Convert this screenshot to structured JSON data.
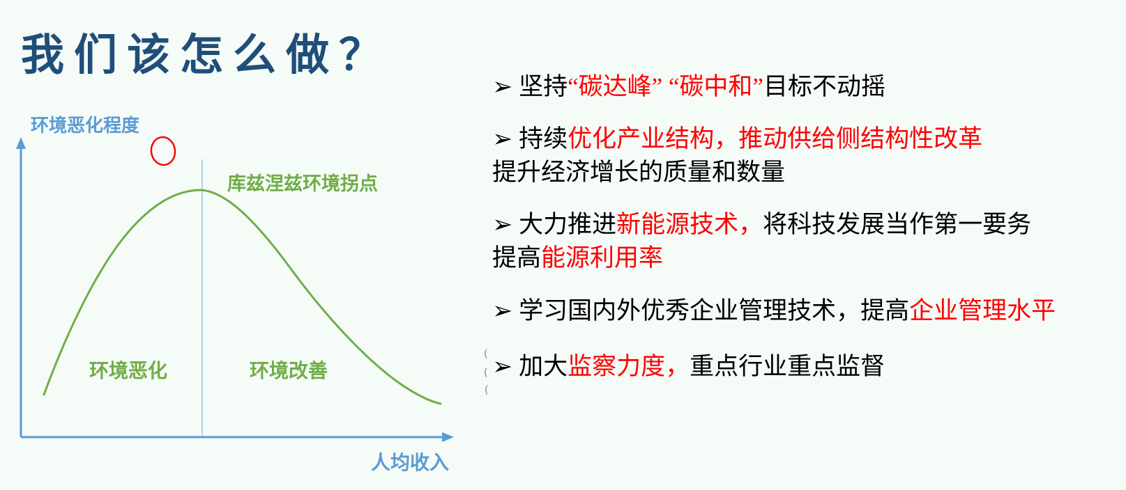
{
  "title": "我们该怎么做？",
  "chart": {
    "y_axis_label": "环境恶化程度",
    "x_axis_label": "人均收入",
    "inflection_label": "库兹涅兹环境拐点",
    "left_region_label": "环境恶化",
    "right_region_label": "环境改善"
  },
  "bullets": [
    {
      "lines": [
        [
          {
            "t": "➢ 坚持",
            "c": "k"
          },
          {
            "t": "“碳达峰” “碳中和”",
            "c": "r"
          },
          {
            "t": "目标不动摇",
            "c": "k"
          }
        ]
      ]
    },
    {
      "lines": [
        [
          {
            "t": "➢ 持续",
            "c": "k"
          },
          {
            "t": "优化产业结构，推动供给侧结构性改革",
            "c": "r"
          }
        ],
        [
          {
            "t": "提升经济增长的质量和数量",
            "c": "k"
          }
        ]
      ]
    },
    {
      "lines": [
        [
          {
            "t": "➢ 大力推进",
            "c": "k"
          },
          {
            "t": "新能源技术，",
            "c": "r"
          },
          {
            "t": "将科技发展当作第一要务",
            "c": "k"
          }
        ],
        [
          {
            "t": "提高",
            "c": "k"
          },
          {
            "t": "能源利用率",
            "c": "r"
          }
        ]
      ]
    },
    {
      "lines": [
        [
          {
            "t": "➢ 学习国内外优秀企业管理技术，提高",
            "c": "k"
          },
          {
            "t": "企业管理水平",
            "c": "r"
          }
        ]
      ]
    },
    {
      "lines": [
        [
          {
            "t": "➢ 加大",
            "c": "k"
          },
          {
            "t": "监察力度，",
            "c": "r"
          },
          {
            "t": "重点行业重点监督",
            "c": "k"
          }
        ]
      ]
    }
  ],
  "stray_marks": [
    "(",
    "(",
    "("
  ],
  "colors": {
    "background": "#F5FBF7",
    "title": "#1F4E79",
    "axis_blue": "#5B9BD5",
    "divider_blue": "#9DC3E6",
    "curve_green": "#70AD47",
    "highlight_red": "#FF0000",
    "text_black": "#000000"
  }
}
